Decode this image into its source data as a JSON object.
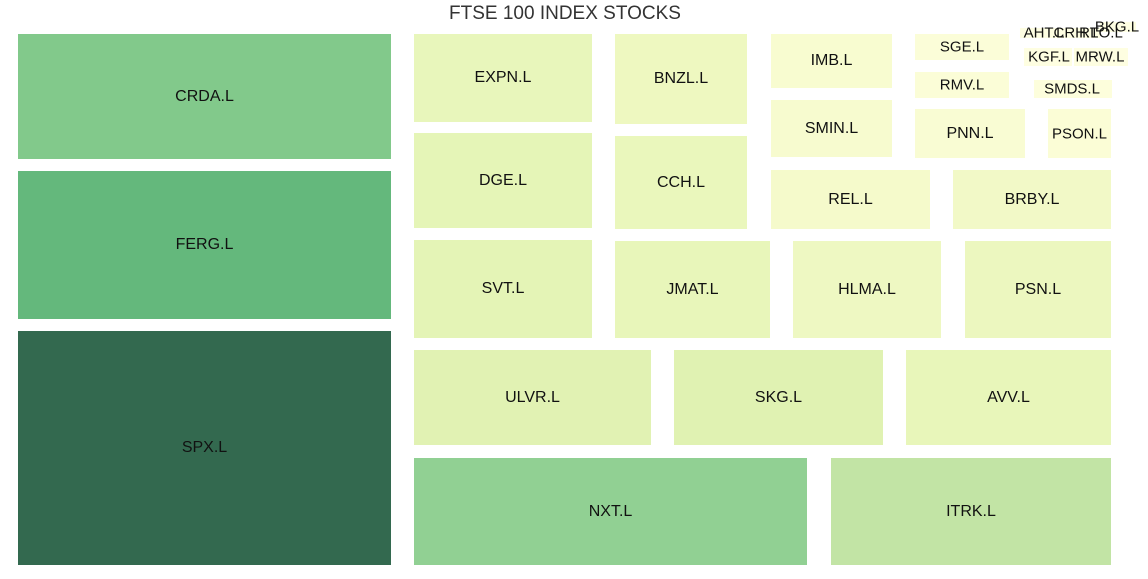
{
  "chart_data": {
    "type": "treemap",
    "title": "FTSE 100 INDEX STOCKS",
    "tiles": [
      {
        "label": "CRDA.L",
        "value": 47,
        "color": "#82c98b"
      },
      {
        "label": "FERG.L",
        "value": 55,
        "color": "#64b87c"
      },
      {
        "label": "SPX.L",
        "value": 86,
        "color": "#33694f"
      },
      {
        "label": "EXPN.L",
        "value": 16,
        "color": "#e8f6bb"
      },
      {
        "label": "DGE.L",
        "value": 17,
        "color": "#e5f5b7"
      },
      {
        "label": "SVT.L",
        "value": 18,
        "color": "#e4f4b6"
      },
      {
        "label": "ULVR.L",
        "value": 22,
        "color": "#e1f2b3"
      },
      {
        "label": "NXT.L",
        "value": 42,
        "color": "#91d093"
      },
      {
        "label": "BNZL.L",
        "value": 12,
        "color": "#eef8c0"
      },
      {
        "label": "CCH.L",
        "value": 12,
        "color": "#eaf7bc"
      },
      {
        "label": "JMAT.L",
        "value": 15,
        "color": "#e8f6ba"
      },
      {
        "label": "SKG.L",
        "value": 20,
        "color": "#e0f2b2"
      },
      {
        "label": "ITRK.L",
        "value": 30,
        "color": "#c2e4a5"
      },
      {
        "label": "IMB.L",
        "value": 7,
        "color": "#f8fcd0"
      },
      {
        "label": "SMIN.L",
        "value": 7,
        "color": "#f7fbcf"
      },
      {
        "label": "REL.L",
        "value": 9,
        "color": "#f5facb"
      },
      {
        "label": "BRBY.L",
        "value": 10,
        "color": "#f2f9c7"
      },
      {
        "label": "HLMA.L",
        "value": 14,
        "color": "#eef8c2"
      },
      {
        "label": "PSN.L",
        "value": 14,
        "color": "#ecf7bf"
      },
      {
        "label": "AVV.L",
        "value": 20,
        "color": "#e8f6ba"
      },
      {
        "label": "SGE.L",
        "value": 3,
        "color": "#fbfdd8"
      },
      {
        "label": "RMV.L",
        "value": 3,
        "color": "#fbfdd7"
      },
      {
        "label": "PNN.L",
        "value": 5,
        "color": "#f9fcd3"
      },
      {
        "label": "AHT.L",
        "value": 1,
        "color": "#fefee2"
      },
      {
        "label": "CRH.L",
        "value": 1,
        "color": "#fefee2"
      },
      {
        "label": "RTO.L",
        "value": 1,
        "color": "#fefee2"
      },
      {
        "label": "BKG.L",
        "value": 1,
        "color": "#fefee2"
      },
      {
        "label": "KGF.L",
        "value": 1,
        "color": "#fefee1"
      },
      {
        "label": "MRW.L",
        "value": 1,
        "color": "#fefee1"
      },
      {
        "label": "SMDS.L",
        "value": 2,
        "color": "#fdfedc"
      },
      {
        "label": "PSON.L",
        "value": 3,
        "color": "#fbfdd6"
      }
    ]
  }
}
